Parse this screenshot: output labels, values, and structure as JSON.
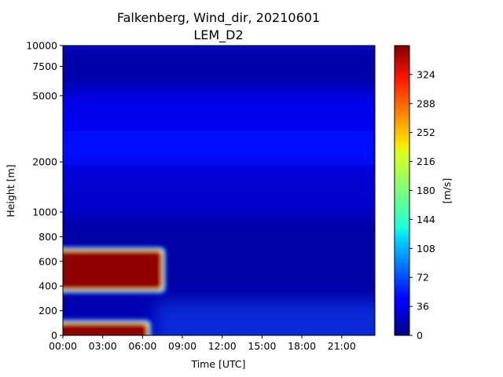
{
  "chart_data": {
    "type": "heatmap",
    "title": "Falkenberg, Wind_dir, 20210601",
    "subtitle": "LEM_D2",
    "xlabel": "Time [UTC]",
    "ylabel": "Height [m]",
    "x_ticks": [
      "00:00",
      "03:00",
      "06:00",
      "09:00",
      "12:00",
      "15:00",
      "18:00",
      "21:00"
    ],
    "x_tick_hours": [
      0,
      3,
      6,
      9,
      12,
      15,
      18,
      21
    ],
    "xlim_hours": [
      0,
      23.5
    ],
    "y_ticks": [
      "0",
      "200",
      "400",
      "600",
      "800",
      "1000",
      "2000",
      "5000",
      "7500",
      "10000"
    ],
    "y_tick_values": [
      0,
      200,
      400,
      600,
      800,
      1000,
      2000,
      5000,
      7500,
      10000
    ],
    "ylim": [
      0,
      10000
    ],
    "y_scale": "piecewise: linear 0-1000 m, logarithmic 1000-10000 m",
    "colormap": "jet",
    "colorbar": {
      "label": "[m/s]",
      "ticks": [
        "0",
        "36",
        "72",
        "108",
        "144",
        "180",
        "216",
        "252",
        "288",
        "324"
      ],
      "tick_values": [
        0,
        36,
        72,
        108,
        144,
        180,
        216,
        252,
        288,
        324
      ],
      "range": [
        0,
        360
      ]
    },
    "background_levels": [
      {
        "height_range": [
          0,
          300
        ],
        "value": 18,
        "note": "lower left, hours 0-7"
      },
      {
        "height_range": [
          300,
          1000
        ],
        "value": 14
      },
      {
        "height_range": [
          1000,
          2000
        ],
        "value": 28
      },
      {
        "height_range": [
          2000,
          3200
        ],
        "value": 48
      },
      {
        "height_range": [
          3200,
          5500
        ],
        "value": 38
      },
      {
        "height_range": [
          5500,
          10000
        ],
        "value": 15
      }
    ],
    "features": [
      {
        "name": "high direction band aloft",
        "hours": [
          0,
          7.4
        ],
        "height_range": [
          380,
          680
        ],
        "value": 355
      },
      {
        "name": "high direction band near surface",
        "hours": [
          0,
          6.3
        ],
        "height_range": [
          0,
          90
        ],
        "value": 355
      }
    ]
  }
}
